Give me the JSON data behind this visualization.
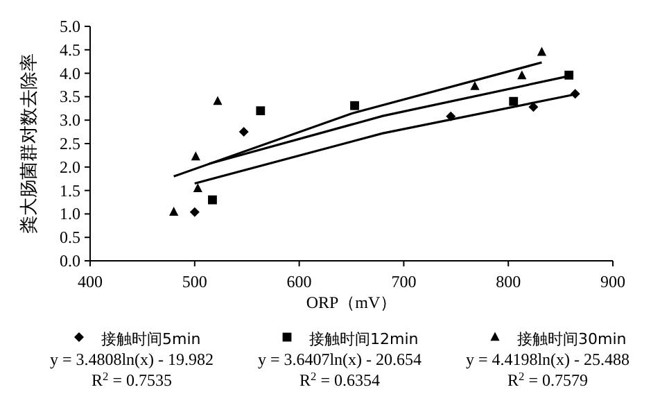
{
  "chart_data": {
    "type": "scatter",
    "xlabel": "ORP（mV）",
    "ylabel": "粪大肠菌群对数去除率",
    "xlim": [
      400,
      900
    ],
    "xticks": [
      400,
      500,
      600,
      700,
      800,
      900
    ],
    "ylim": [
      0,
      5
    ],
    "yticks": [
      {
        "value": 0,
        "label": "0.0"
      },
      {
        "value": 0.5,
        "label": "0.5"
      },
      {
        "value": 1,
        "label": "1.0"
      },
      {
        "value": 1.5,
        "label": "1.5"
      },
      {
        "value": 2,
        "label": "2.0"
      },
      {
        "value": 2.5,
        "label": "2.5"
      },
      {
        "value": 3,
        "label": "3.0"
      },
      {
        "value": 3.5,
        "label": "3.5"
      },
      {
        "value": 4,
        "label": "4.0"
      },
      {
        "value": 4.5,
        "label": "4.5"
      },
      {
        "value": 5,
        "label": "5.0"
      }
    ],
    "grid": false,
    "legend": "bottom",
    "series": [
      {
        "name": "接触时间5min",
        "color": "#000000",
        "marker": "diamond",
        "x": [
          500,
          547,
          745,
          824,
          864
        ],
        "values": [
          1.04,
          2.75,
          3.08,
          3.28,
          3.56
        ]
      },
      {
        "name": "接触时间12min",
        "color": "#000000",
        "marker": "square",
        "x": [
          517,
          563,
          653,
          805,
          858
        ],
        "values": [
          1.3,
          3.2,
          3.31,
          3.4,
          3.96
        ]
      },
      {
        "name": "接触时间30min",
        "color": "#000000",
        "marker": "triangle",
        "x": [
          480,
          501,
          503,
          522,
          768,
          813,
          832
        ],
        "values": [
          1.04,
          2.22,
          1.54,
          3.4,
          3.72,
          3.95,
          4.45
        ]
      },
      {
        "type": "line",
        "color": "#000000",
        "marker": "none",
        "x": [
          500,
          680,
          864
        ],
        "values": [
          1.65,
          2.72,
          3.55
        ]
      },
      {
        "type": "line",
        "color": "#000000",
        "marker": "none",
        "x": [
          514,
          680,
          858
        ],
        "values": [
          2.07,
          3.09,
          3.94
        ]
      },
      {
        "type": "line",
        "color": "#000000",
        "marker": "none",
        "x": [
          480,
          650,
          832
        ],
        "values": [
          1.8,
          3.14,
          4.23
        ]
      }
    ],
    "annotations": [
      "y = 3.4808ln(x) - 19.982",
      "R$^{2}$ = 0.7535",
      "y = 3.6407ln(x) - 20.654",
      "R$^{2}$ = 0.6354",
      "y = 4.4198ln(x) - 25.488",
      "R$^{2}$ = 0.7579"
    ]
  }
}
